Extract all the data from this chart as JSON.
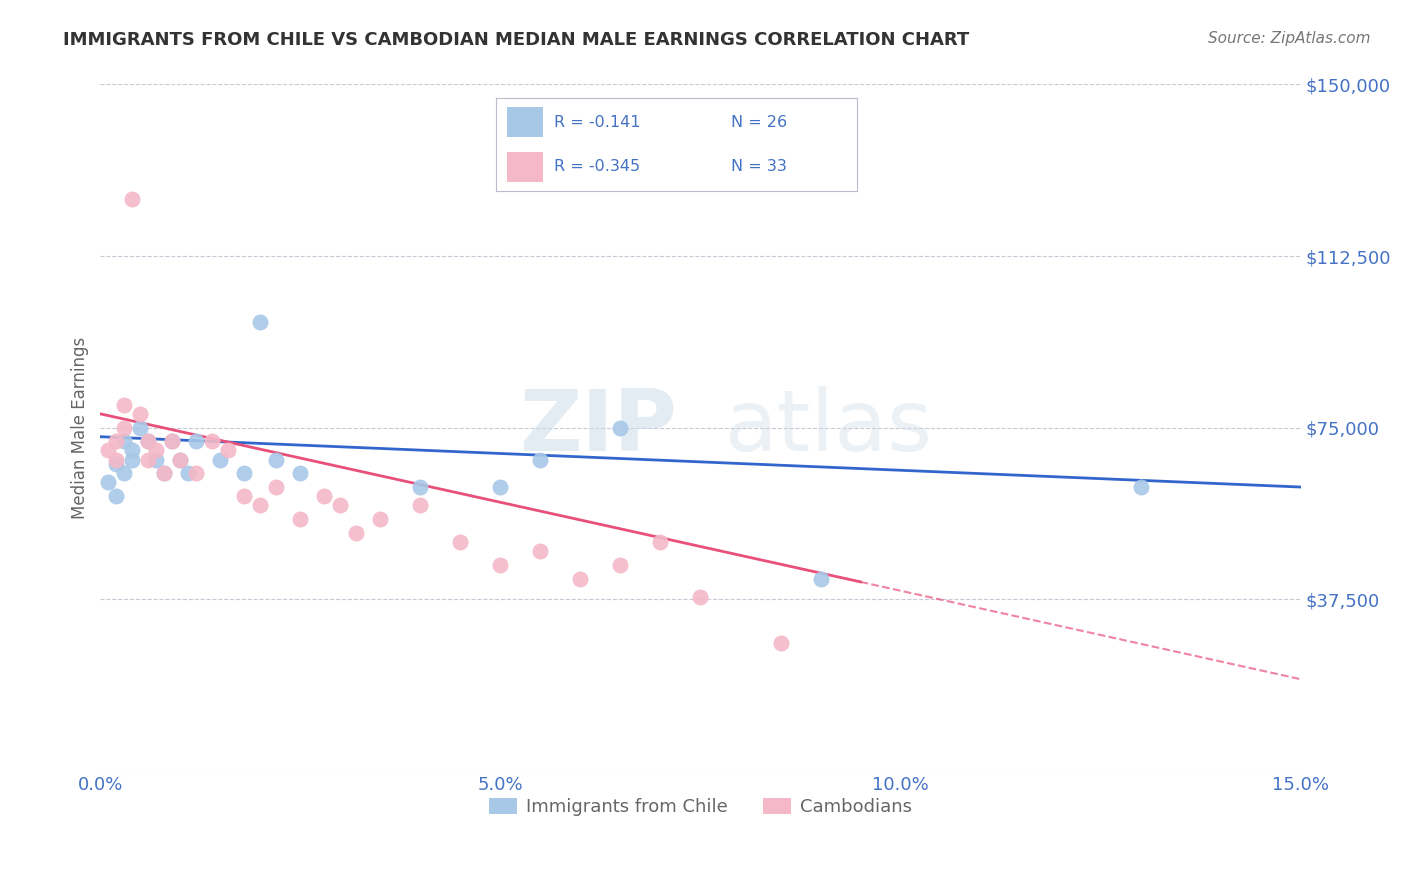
{
  "title": "IMMIGRANTS FROM CHILE VS CAMBODIAN MEDIAN MALE EARNINGS CORRELATION CHART",
  "source_text": "Source: ZipAtlas.com",
  "ylabel": "Median Male Earnings",
  "xlabel": "",
  "xlim": [
    0.0,
    0.15
  ],
  "ylim": [
    0,
    150000
  ],
  "yticks": [
    0,
    37500,
    75000,
    112500,
    150000
  ],
  "ytick_labels": [
    "",
    "$37,500",
    "$75,000",
    "$112,500",
    "$150,000"
  ],
  "xticks": [
    0.0,
    0.05,
    0.1,
    0.15
  ],
  "xtick_labels": [
    "0.0%",
    "5.0%",
    "10.0%",
    "15.0%"
  ],
  "blue_color": "#a8c8e8",
  "pink_color": "#f4b8c8",
  "blue_line_color": "#3366cc",
  "pink_line_color": "#e8507a",
  "title_color": "#333333",
  "axis_label_color": "#666666",
  "tick_color": "#4472C4",
  "grid_color": "#c8c8d8",
  "watermark_color": "#d0dce8",
  "watermark": "ZIPatlas",
  "legend_r1": "R = -0.141",
  "legend_n1": "N = 26",
  "legend_r2": "R = -0.345",
  "legend_n2": "N = 33",
  "legend_label1": "Immigrants from Chile",
  "legend_label2": "Cambodians",
  "chile_x": [
    0.001,
    0.002,
    0.002,
    0.003,
    0.003,
    0.004,
    0.004,
    0.005,
    0.006,
    0.007,
    0.008,
    0.009,
    0.01,
    0.011,
    0.012,
    0.015,
    0.018,
    0.02,
    0.022,
    0.025,
    0.04,
    0.05,
    0.055,
    0.065,
    0.09,
    0.13
  ],
  "chile_y": [
    63000,
    60000,
    67000,
    72000,
    65000,
    70000,
    68000,
    75000,
    72000,
    68000,
    65000,
    72000,
    68000,
    65000,
    72000,
    68000,
    65000,
    98000,
    68000,
    65000,
    62000,
    62000,
    68000,
    75000,
    42000,
    62000
  ],
  "cambodian_x": [
    0.001,
    0.002,
    0.002,
    0.003,
    0.003,
    0.004,
    0.005,
    0.006,
    0.006,
    0.007,
    0.008,
    0.009,
    0.01,
    0.012,
    0.014,
    0.016,
    0.018,
    0.02,
    0.022,
    0.025,
    0.028,
    0.03,
    0.032,
    0.035,
    0.04,
    0.045,
    0.05,
    0.055,
    0.06,
    0.065,
    0.07,
    0.075,
    0.085
  ],
  "cambodian_y": [
    70000,
    72000,
    68000,
    80000,
    75000,
    125000,
    78000,
    72000,
    68000,
    70000,
    65000,
    72000,
    68000,
    65000,
    72000,
    70000,
    60000,
    58000,
    62000,
    55000,
    60000,
    58000,
    52000,
    55000,
    58000,
    50000,
    45000,
    48000,
    42000,
    45000,
    50000,
    38000,
    28000
  ]
}
